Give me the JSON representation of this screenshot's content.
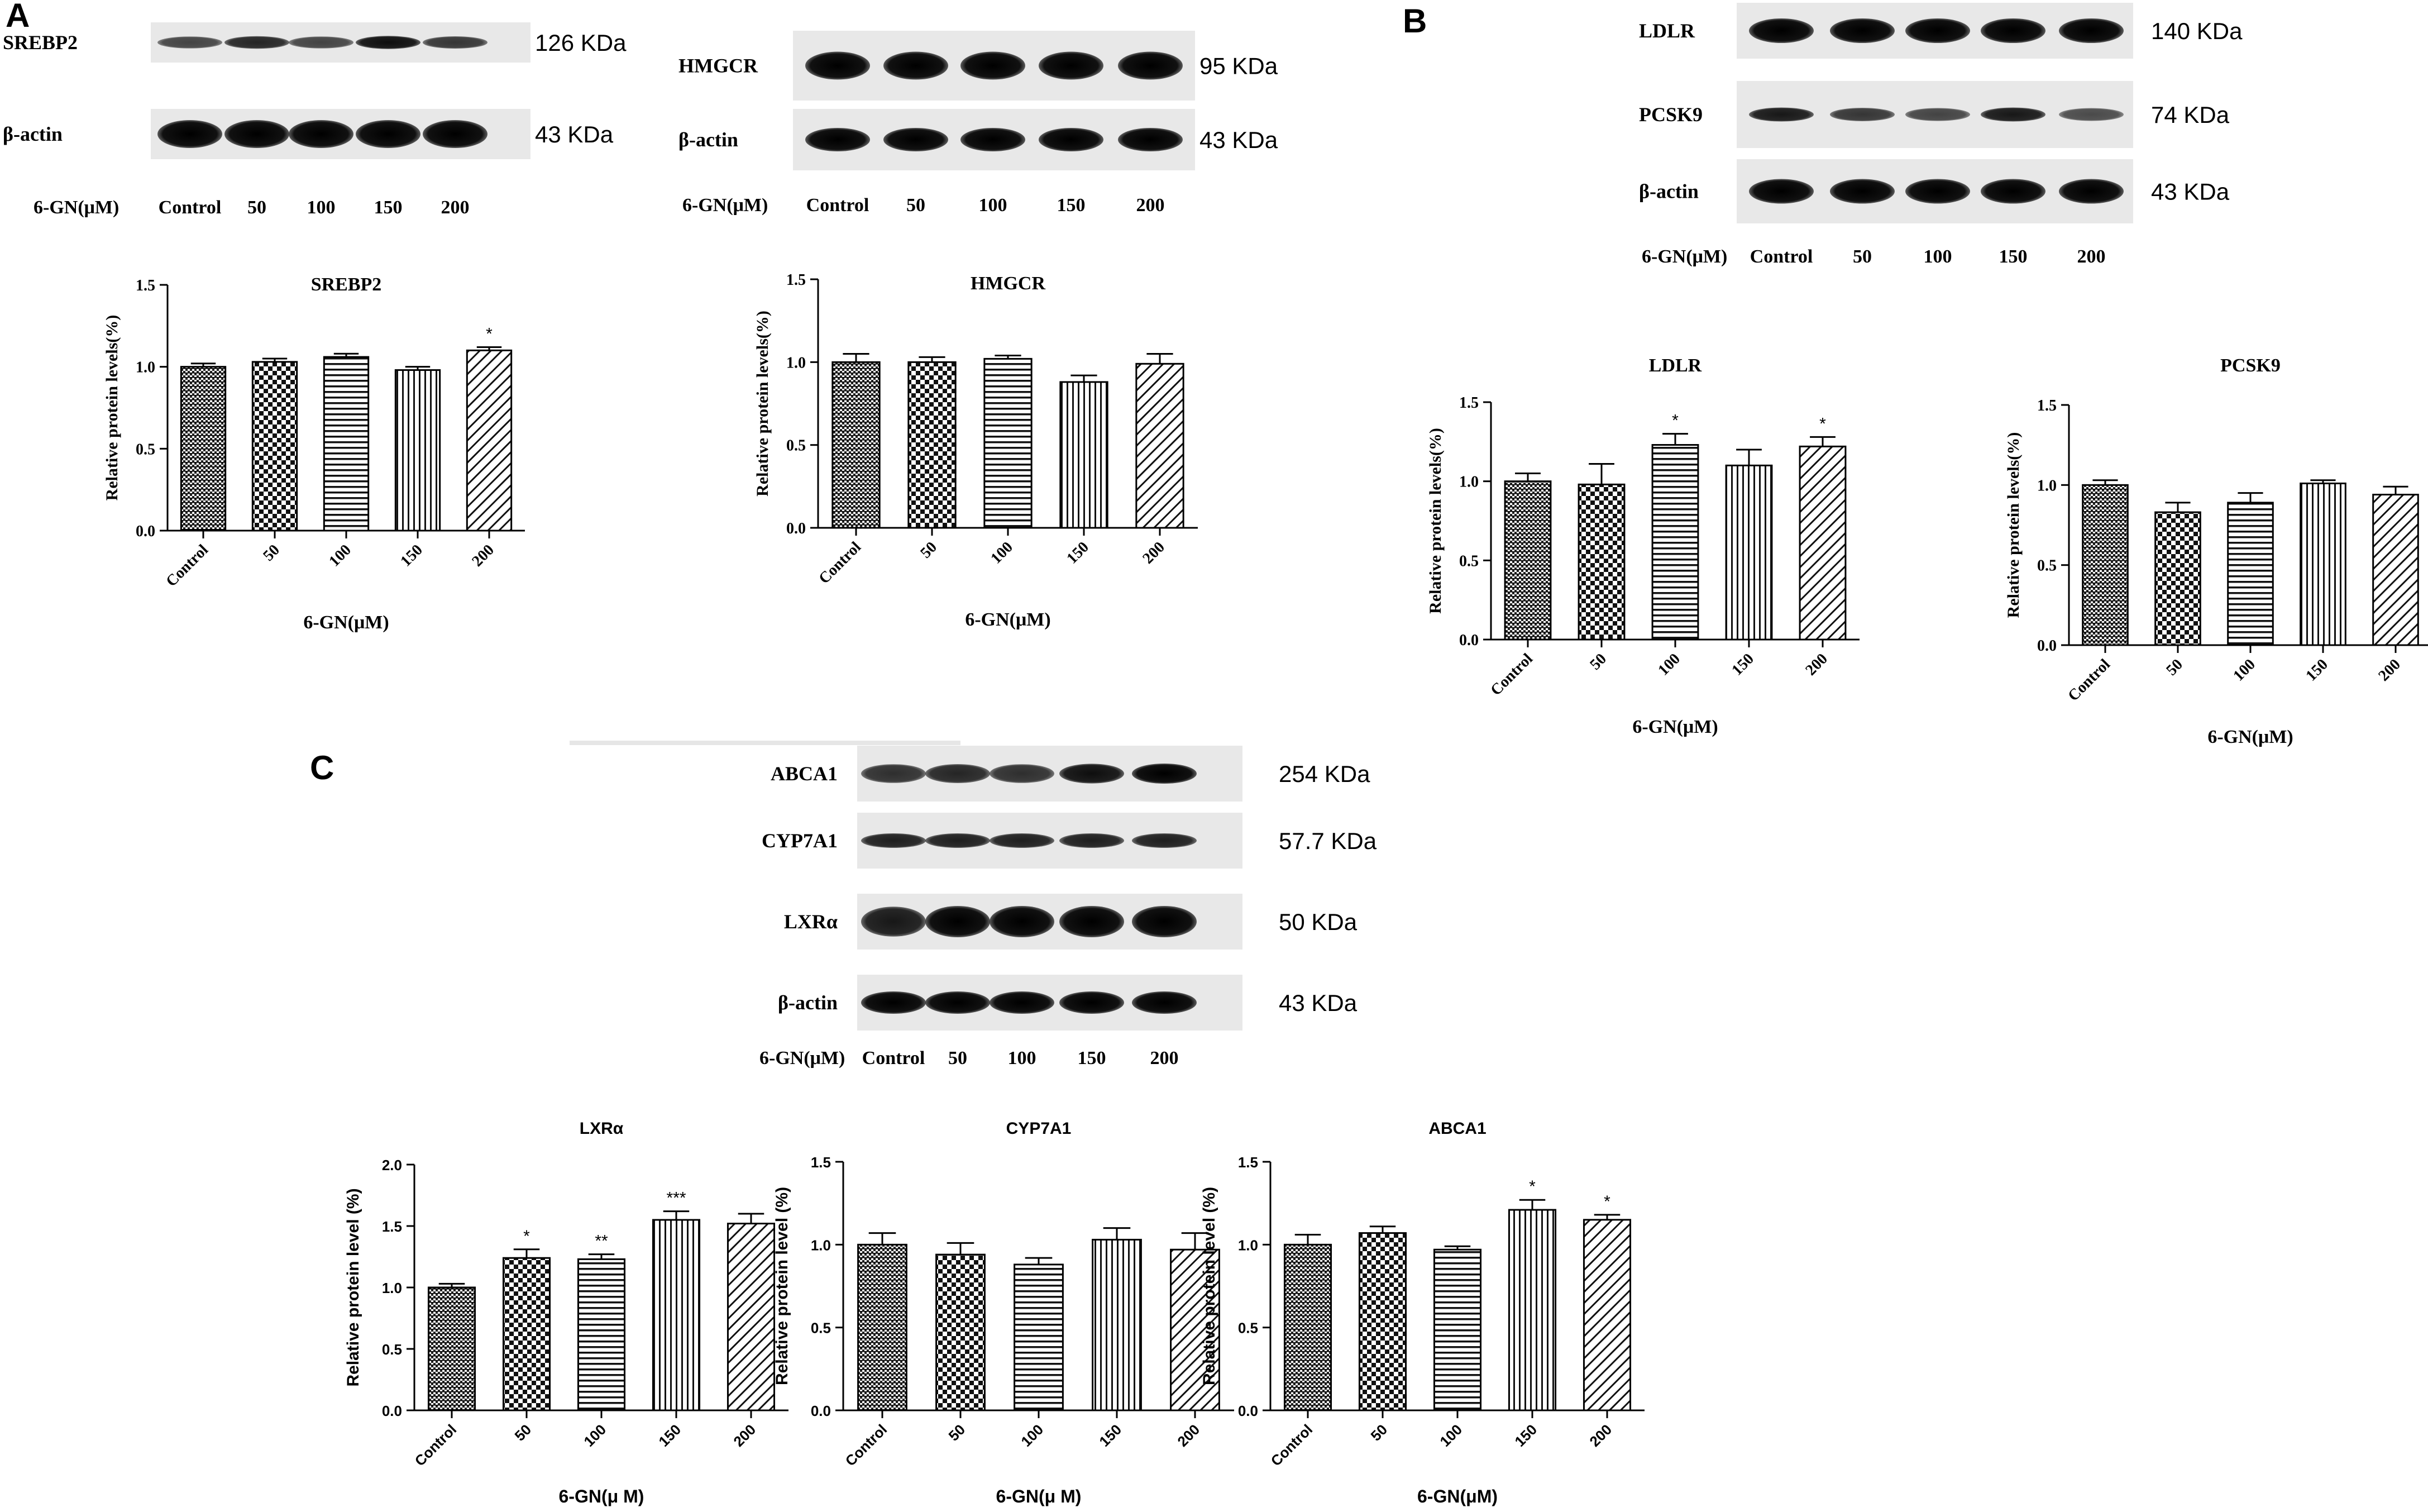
{
  "panels": {
    "A": "A",
    "B": "B",
    "C": "C"
  },
  "blots": [
    {
      "bands": [
        {
          "label": "SREBP2",
          "kda": "126 KDa"
        },
        {
          "label": "β-actin",
          "kda": "43 KDa"
        }
      ],
      "dose_label": "6-GN(μM)",
      "doses": [
        "Control",
        "50",
        "100",
        "150",
        "200"
      ]
    },
    {
      "bands": [
        {
          "label": "HMGCR",
          "kda": "95 KDa"
        },
        {
          "label": "β-actin",
          "kda": "43 KDa"
        }
      ],
      "dose_label": "6-GN(μM)",
      "doses": [
        "Control",
        "50",
        "100",
        "150",
        "200"
      ]
    },
    {
      "bands": [
        {
          "label": "LDLR",
          "kda": "140 KDa"
        },
        {
          "label": "PCSK9",
          "kda": "74 KDa"
        },
        {
          "label": "β-actin",
          "kda": "43 KDa"
        }
      ],
      "dose_label": "6-GN(μM)",
      "doses": [
        "Control",
        "50",
        "100",
        "150",
        "200"
      ]
    },
    {
      "bands": [
        {
          "label": "ABCA1",
          "kda": "254 KDa"
        },
        {
          "label": "CYP7A1",
          "kda": "57.7 KDa"
        },
        {
          "label": "LXRα",
          "kda": "50 KDa"
        },
        {
          "label": "β-actin",
          "kda": "43 KDa"
        }
      ],
      "dose_label": "6-GN(μM)",
      "doses": [
        "Control",
        "50",
        "100",
        "150",
        "200"
      ]
    }
  ],
  "chart_data": [
    {
      "type": "bar",
      "title": "SREBP2",
      "xlabel": "6-GN(μM)",
      "ylabel": "Relative protein levels(%)",
      "categories": [
        "Control",
        "50",
        "100",
        "150",
        "200"
      ],
      "values": [
        1.0,
        1.03,
        1.06,
        0.98,
        1.1
      ],
      "errors": [
        0.02,
        0.02,
        0.02,
        0.02,
        0.02
      ],
      "significance": [
        "",
        "",
        "",
        "",
        "*"
      ],
      "ylim": [
        0,
        1.5
      ],
      "yticks": [
        "0.0",
        "0.5",
        "1.0",
        "1.5"
      ]
    },
    {
      "type": "bar",
      "title": "HMGCR",
      "xlabel": "6-GN(μM)",
      "ylabel": "Relative protein levels(%)",
      "categories": [
        "Control",
        "50",
        "100",
        "150",
        "200"
      ],
      "values": [
        1.0,
        1.0,
        1.02,
        0.88,
        0.99
      ],
      "errors": [
        0.05,
        0.03,
        0.02,
        0.04,
        0.06
      ],
      "significance": [
        "",
        "",
        "",
        "",
        ""
      ],
      "ylim": [
        0,
        1.5
      ],
      "yticks": [
        "0.0",
        "0.5",
        "1.0",
        "1.5"
      ]
    },
    {
      "type": "bar",
      "title": "LDLR",
      "xlabel": "6-GN(μM)",
      "ylabel": "Relative protein levels(%)",
      "categories": [
        "Control",
        "50",
        "100",
        "150",
        "200"
      ],
      "values": [
        1.0,
        0.98,
        1.23,
        1.1,
        1.22
      ],
      "errors": [
        0.05,
        0.13,
        0.07,
        0.1,
        0.06
      ],
      "significance": [
        "",
        "",
        "*",
        "",
        "*"
      ],
      "ylim": [
        0,
        1.5
      ],
      "yticks": [
        "0.0",
        "0.5",
        "1.0",
        "1.5"
      ]
    },
    {
      "type": "bar",
      "title": "PCSK9",
      "xlabel": "6-GN(μM)",
      "ylabel": "Relative protein levels(%)",
      "categories": [
        "Control",
        "50",
        "100",
        "150",
        "200"
      ],
      "values": [
        1.0,
        0.83,
        0.89,
        1.01,
        0.94
      ],
      "errors": [
        0.03,
        0.06,
        0.06,
        0.02,
        0.05
      ],
      "significance": [
        "",
        "",
        "",
        "",
        ""
      ],
      "ylim": [
        0,
        1.5
      ],
      "yticks": [
        "0.0",
        "0.5",
        "1.0",
        "1.5"
      ]
    },
    {
      "type": "bar",
      "title": "LXRα",
      "xlabel": "6-GN(μ M)",
      "ylabel": "Relative protein level (%)",
      "categories": [
        "Control",
        "50",
        "100",
        "150",
        "200"
      ],
      "values": [
        1.0,
        1.24,
        1.23,
        1.55,
        1.52
      ],
      "errors": [
        0.03,
        0.07,
        0.04,
        0.07,
        0.08
      ],
      "significance": [
        "",
        "*",
        "**",
        "***",
        ""
      ],
      "ylim": [
        0,
        2.0
      ],
      "yticks": [
        "0.0",
        "0.5",
        "1.0",
        "1.5",
        "2.0"
      ]
    },
    {
      "type": "bar",
      "title": "CYP7A1",
      "xlabel": "6-GN(μ M)",
      "ylabel": "Relative protein level (%)",
      "categories": [
        "Control",
        "50",
        "100",
        "150",
        "200"
      ],
      "values": [
        1.0,
        0.94,
        0.88,
        1.03,
        0.97
      ],
      "errors": [
        0.07,
        0.07,
        0.04,
        0.07,
        0.1
      ],
      "significance": [
        "",
        "",
        "",
        "",
        ""
      ],
      "ylim": [
        0,
        1.5
      ],
      "yticks": [
        "0.0",
        "0.5",
        "1.0",
        "1.5"
      ]
    },
    {
      "type": "bar",
      "title": "ABCA1",
      "xlabel": "6-GN(μM)",
      "ylabel": "Relative protein level (%)",
      "categories": [
        "Control",
        "50",
        "100",
        "150",
        "200"
      ],
      "values": [
        1.0,
        1.07,
        0.97,
        1.21,
        1.15
      ],
      "errors": [
        0.06,
        0.04,
        0.02,
        0.06,
        0.03
      ],
      "significance": [
        "",
        "",
        "",
        "*",
        "*"
      ],
      "ylim": [
        0,
        1.5
      ],
      "yticks": [
        "0.0",
        "0.5",
        "1.0",
        "1.5"
      ]
    }
  ]
}
